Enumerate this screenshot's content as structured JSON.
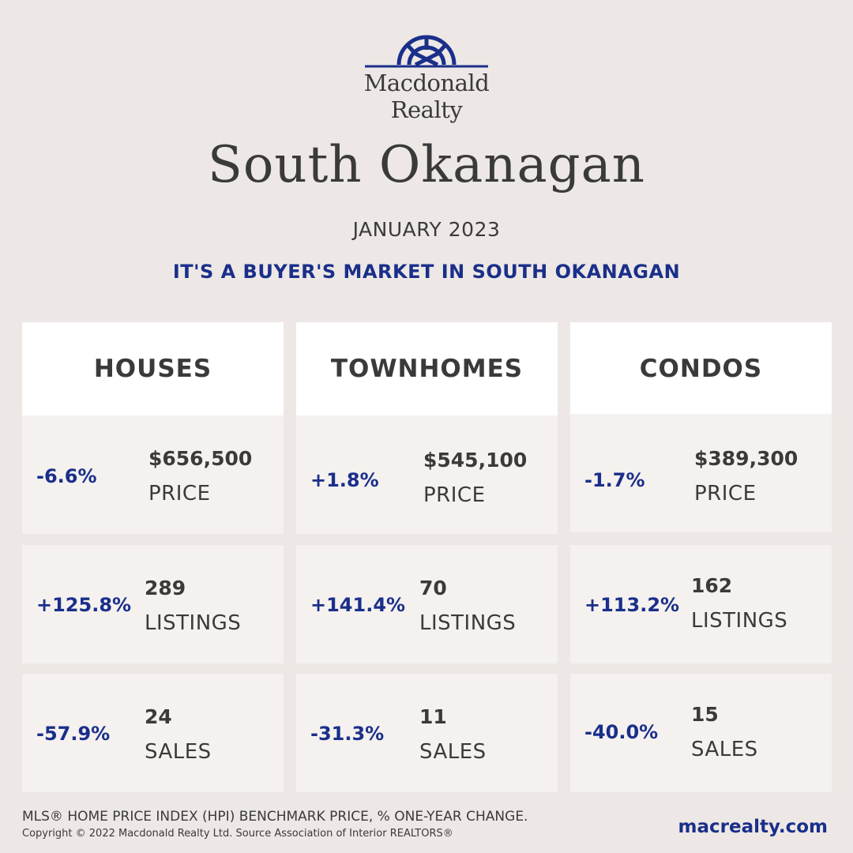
{
  "brand": {
    "logo_line1": "Macdonald",
    "logo_line2": "Realty",
    "logo_icon": "wheel-arch-icon",
    "color": "#1a2f8a"
  },
  "title": "South Okanagan",
  "period": "JANUARY 2023",
  "headline": "IT'S A BUYER'S MARKET IN SOUTH OKANAGAN",
  "columns": [
    {
      "name": "HOUSES",
      "price": {
        "change": "-6.6%",
        "value": "$656,500",
        "label": "PRICE"
      },
      "listings": {
        "change": "+125.8%",
        "value": "289",
        "label": "LISTINGS"
      },
      "sales": {
        "change": "-57.9%",
        "value": "24",
        "label": "SALES"
      }
    },
    {
      "name": "TOWNHOMES",
      "price": {
        "change": "+1.8%",
        "value": "$545,100",
        "label": "PRICE"
      },
      "listings": {
        "change": "+141.4%",
        "value": "70",
        "label": "LISTINGS"
      },
      "sales": {
        "change": "-31.3%",
        "value": "11",
        "label": "SALES"
      }
    },
    {
      "name": "CONDOS",
      "price": {
        "change": "-1.7%",
        "value": "$389,300",
        "label": "PRICE"
      },
      "listings": {
        "change": "+113.2%",
        "value": "162",
        "label": "LISTINGS"
      },
      "sales": {
        "change": "-40.0%",
        "value": "15",
        "label": "SALES"
      }
    }
  ],
  "footer": {
    "note": "MLS® HOME PRICE INDEX (HPI) BENCHMARK PRICE, % ONE-YEAR CHANGE.",
    "copyright": "Copyright © 2022 Macdonald Realty Ltd. Source Association of Interior REALTORS®",
    "website": "macrealty.com"
  },
  "colors": {
    "background": "#ede8e5",
    "accent": "#1a2f8a",
    "text": "#3a3a3a"
  }
}
